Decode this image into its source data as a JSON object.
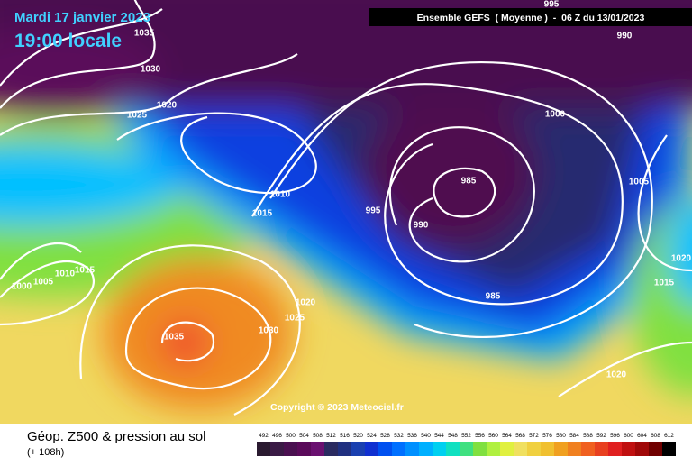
{
  "header": {
    "date": "Mardi 17 janvier 2023",
    "time": "19:00 locale",
    "model": "Ensemble GEFS  ( Moyenne )  -  06 Z du 13/01/2023"
  },
  "isobar_labels": [
    "995",
    "990",
    "1035",
    "1030",
    "1025",
    "1020",
    "1000",
    "1005",
    "985",
    "995",
    "990",
    "1010",
    "1015",
    "1000",
    "1005",
    "1010",
    "1015",
    "1020",
    "1025",
    "1030",
    "1035",
    "985",
    "1020",
    "1015",
    "1020"
  ],
  "copyright": "Copyright © 2023 Meteociel.fr",
  "caption": {
    "title": "Géop. Z500 & pression au sol",
    "lead": "(+ 108h)"
  },
  "legend": {
    "ticks": [
      "492",
      "496",
      "500",
      "504",
      "508",
      "512",
      "516",
      "520",
      "524",
      "528",
      "532",
      "536",
      "540",
      "544",
      "548",
      "552",
      "556",
      "560",
      "564",
      "568",
      "572",
      "576",
      "580",
      "584",
      "588",
      "592",
      "596",
      "600",
      "604",
      "608",
      "612"
    ],
    "colors": [
      "#2a1a30",
      "#3a1a45",
      "#4a1050",
      "#5a0a5a",
      "#6a1070",
      "#2a2a60",
      "#203080",
      "#1a40b0",
      "#1030d0",
      "#0050f0",
      "#0070ff",
      "#0090ff",
      "#00b0ff",
      "#00d0f0",
      "#10e0c0",
      "#40e080",
      "#80e040",
      "#b0f040",
      "#e0f040",
      "#f0e060",
      "#f0d040",
      "#f0c030",
      "#f0a020",
      "#f08020",
      "#f06020",
      "#e84020",
      "#e02020",
      "#c01010",
      "#a00808",
      "#700000",
      "#000000"
    ]
  }
}
